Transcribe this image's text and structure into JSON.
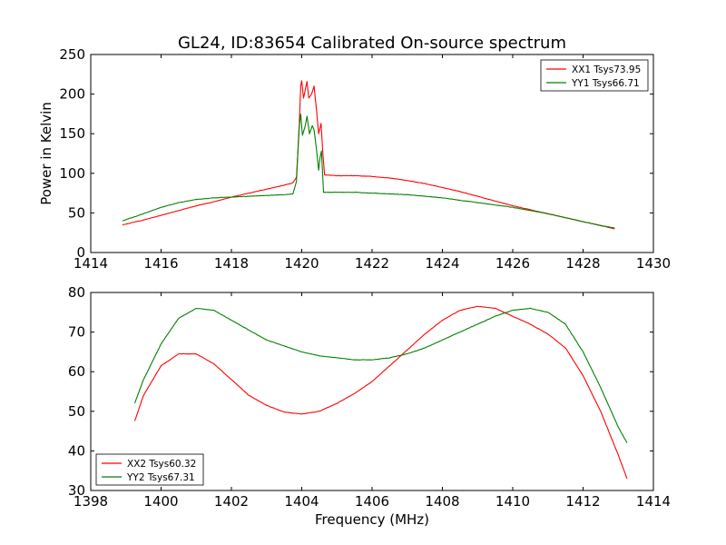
{
  "title": "GL24, ID:83654 Calibrated On-source spectrum",
  "ylabel_top": "Power in Kelvin",
  "xlabel_bottom": "Frequency (MHz)",
  "chart_data": [
    {
      "type": "line",
      "title": "GL24, ID:83654 Calibrated On-source spectrum",
      "xlabel": "",
      "ylabel": "Power in Kelvin",
      "xlim": [
        1414,
        1430
      ],
      "ylim": [
        0,
        250
      ],
      "xticks": [
        1414,
        1416,
        1418,
        1420,
        1422,
        1424,
        1426,
        1428,
        1430
      ],
      "yticks": [
        0,
        50,
        100,
        150,
        200,
        250
      ],
      "legend": "top-right",
      "grid": false,
      "series": [
        {
          "name": "XX1 Tsys73.95",
          "color": "#ff0000",
          "points": [
            [
              1414.9,
              35
            ],
            [
              1415.5,
              41
            ],
            [
              1416,
              47
            ],
            [
              1416.5,
              53
            ],
            [
              1417,
              59
            ],
            [
              1417.5,
              64
            ],
            [
              1418,
              70
            ],
            [
              1418.5,
              75
            ],
            [
              1419,
              80
            ],
            [
              1419.5,
              85
            ],
            [
              1419.75,
              88
            ],
            [
              1419.85,
              95
            ],
            [
              1419.92,
              150
            ],
            [
              1419.97,
              210
            ],
            [
              1420.0,
              217
            ],
            [
              1420.05,
              195
            ],
            [
              1420.1,
              205
            ],
            [
              1420.15,
              216
            ],
            [
              1420.2,
              195
            ],
            [
              1420.28,
              200
            ],
            [
              1420.35,
              210
            ],
            [
              1420.42,
              180
            ],
            [
              1420.48,
              150
            ],
            [
              1420.55,
              163
            ],
            [
              1420.6,
              125
            ],
            [
              1420.65,
              98
            ],
            [
              1421,
              97
            ],
            [
              1421.5,
              97
            ],
            [
              1422,
              96
            ],
            [
              1422.5,
              94
            ],
            [
              1423,
              91
            ],
            [
              1423.5,
              87
            ],
            [
              1424,
              82
            ],
            [
              1424.5,
              77
            ],
            [
              1425,
              71
            ],
            [
              1425.5,
              65
            ],
            [
              1426,
              59
            ],
            [
              1426.5,
              54
            ],
            [
              1427,
              49
            ],
            [
              1427.5,
              44
            ],
            [
              1428,
              39
            ],
            [
              1428.5,
              34
            ],
            [
              1428.9,
              30
            ]
          ]
        },
        {
          "name": "YY1 Tsys66.71",
          "color": "#008000",
          "points": [
            [
              1414.9,
              40
            ],
            [
              1415.5,
              49
            ],
            [
              1416,
              57
            ],
            [
              1416.5,
              63
            ],
            [
              1417,
              67
            ],
            [
              1417.5,
              69
            ],
            [
              1418,
              70
            ],
            [
              1418.5,
              71
            ],
            [
              1419,
              72
            ],
            [
              1419.5,
              73
            ],
            [
              1419.75,
              74
            ],
            [
              1419.85,
              90
            ],
            [
              1419.92,
              155
            ],
            [
              1419.97,
              175
            ],
            [
              1420.02,
              148
            ],
            [
              1420.1,
              160
            ],
            [
              1420.15,
              172
            ],
            [
              1420.22,
              150
            ],
            [
              1420.3,
              160
            ],
            [
              1420.35,
              155
            ],
            [
              1420.42,
              130
            ],
            [
              1420.48,
              104
            ],
            [
              1420.52,
              120
            ],
            [
              1420.56,
              128
            ],
            [
              1420.62,
              76
            ],
            [
              1421,
              76
            ],
            [
              1421.5,
              76
            ],
            [
              1422,
              75
            ],
            [
              1422.5,
              74
            ],
            [
              1423,
              73
            ],
            [
              1423.5,
              71
            ],
            [
              1424,
              69
            ],
            [
              1424.5,
              66
            ],
            [
              1425,
              63
            ],
            [
              1425.5,
              60
            ],
            [
              1426,
              57
            ],
            [
              1426.5,
              53
            ],
            [
              1427,
              49
            ],
            [
              1427.5,
              44
            ],
            [
              1428,
              39
            ],
            [
              1428.5,
              34
            ],
            [
              1428.9,
              31
            ]
          ]
        }
      ]
    },
    {
      "type": "line",
      "title": "",
      "xlabel": "Frequency (MHz)",
      "ylabel": "",
      "xlim": [
        1398,
        1414
      ],
      "ylim": [
        30,
        80
      ],
      "xticks": [
        1398,
        1400,
        1402,
        1404,
        1406,
        1408,
        1410,
        1412,
        1414
      ],
      "yticks": [
        30,
        40,
        50,
        60,
        70,
        80
      ],
      "legend": "bottom-left",
      "grid": false,
      "series": [
        {
          "name": "XX2 Tsys60.32",
          "color": "#ff0000",
          "points": [
            [
              1399.25,
              47.5
            ],
            [
              1399.5,
              54
            ],
            [
              1400,
              61.5
            ],
            [
              1400.5,
              64.5
            ],
            [
              1401,
              64.5
            ],
            [
              1401.5,
              62
            ],
            [
              1402,
              58
            ],
            [
              1402.5,
              54
            ],
            [
              1403,
              51.5
            ],
            [
              1403.5,
              49.8
            ],
            [
              1404,
              49.3
            ],
            [
              1404.5,
              50
            ],
            [
              1405,
              52
            ],
            [
              1405.5,
              54.5
            ],
            [
              1406,
              57.5
            ],
            [
              1406.5,
              61.5
            ],
            [
              1407,
              65.5
            ],
            [
              1407.5,
              69.5
            ],
            [
              1408,
              73
            ],
            [
              1408.5,
              75.5
            ],
            [
              1409,
              76.5
            ],
            [
              1409.5,
              76
            ],
            [
              1410,
              74
            ],
            [
              1410.5,
              72
            ],
            [
              1411,
              69.5
            ],
            [
              1411.5,
              66
            ],
            [
              1412,
              59
            ],
            [
              1412.5,
              50
            ],
            [
              1413,
              39
            ],
            [
              1413.25,
              33
            ]
          ]
        },
        {
          "name": "YY2 Tsys67.31",
          "color": "#008000",
          "points": [
            [
              1399.25,
              52
            ],
            [
              1399.5,
              58
            ],
            [
              1400,
              67
            ],
            [
              1400.5,
              73.5
            ],
            [
              1401,
              76
            ],
            [
              1401.5,
              75.5
            ],
            [
              1402,
              73
            ],
            [
              1402.5,
              70.5
            ],
            [
              1403,
              68
            ],
            [
              1403.5,
              66.5
            ],
            [
              1404,
              65
            ],
            [
              1404.5,
              64
            ],
            [
              1405,
              63.5
            ],
            [
              1405.5,
              63
            ],
            [
              1406,
              63
            ],
            [
              1406.5,
              63.5
            ],
            [
              1407,
              64.5
            ],
            [
              1407.5,
              66
            ],
            [
              1408,
              68
            ],
            [
              1408.5,
              70
            ],
            [
              1409,
              72
            ],
            [
              1409.5,
              74
            ],
            [
              1410,
              75.5
            ],
            [
              1410.5,
              76
            ],
            [
              1411,
              75
            ],
            [
              1411.5,
              72
            ],
            [
              1412,
              65
            ],
            [
              1412.5,
              56
            ],
            [
              1413,
              46
            ],
            [
              1413.25,
              42
            ]
          ]
        }
      ]
    }
  ]
}
